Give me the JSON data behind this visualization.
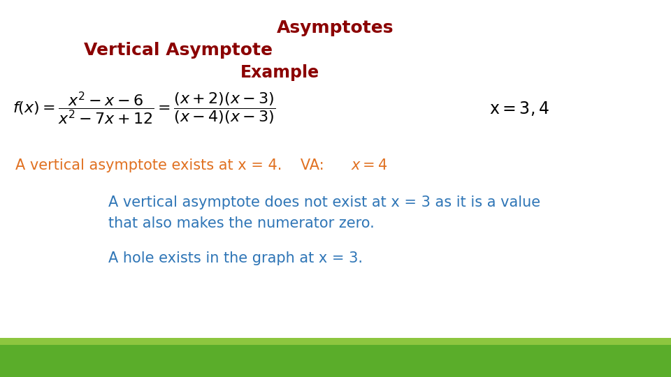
{
  "title": "Asymptotes",
  "subtitle": "Vertical Asymptote",
  "example_label": "Example",
  "title_color": "#8B0000",
  "subtitle_color": "#8B0000",
  "example_color": "#8B0000",
  "formula_color": "#000000",
  "va_text_color": "#E07020",
  "blue_text_color": "#2E75B6",
  "green_bar_color": "#5AAD2A",
  "light_green_bar_color": "#8DC63F",
  "background_color": "#FFFFFF",
  "title_fontsize": 18,
  "subtitle_fontsize": 18,
  "example_fontsize": 17,
  "formula_fontsize": 16,
  "text_fontsize": 15
}
